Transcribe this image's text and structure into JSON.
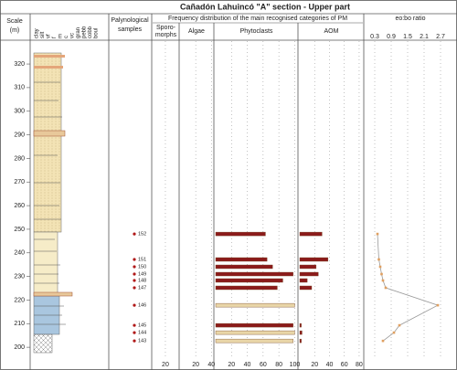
{
  "title": "Cañadón Lahuincó \"A\" section - Upper part",
  "depth_axis": {
    "label_lines": [
      "Scale",
      "(m)"
    ],
    "ylim": [
      195.4,
      329.7
    ],
    "yticks": [
      200,
      210,
      220,
      230,
      240,
      250,
      260,
      270,
      280,
      290,
      300,
      310,
      320
    ]
  },
  "lithology": {
    "grain_sizes": [
      "clay",
      "silt",
      "vf",
      "f",
      "m",
      "c",
      "vc",
      "gran",
      "pebb",
      "cobb",
      "boul"
    ]
  },
  "samples": {
    "title_lines": [
      "Palynological",
      "samples"
    ],
    "labels": [
      "152",
      "151",
      "150",
      "149",
      "148",
      "147",
      "146",
      "145",
      "144",
      "143"
    ],
    "depths": [
      248,
      237.2,
      234.1,
      231,
      228.3,
      225.2,
      217.8,
      209.3,
      206.2,
      202.7
    ]
  },
  "frequency_title": "Frequency distribution of the main recognised categories of PM",
  "chart_data": [
    {
      "type": "bar",
      "title_lines": [
        "Sporo-",
        "morphs"
      ],
      "xlim": [
        0,
        42
      ],
      "xticks": [
        20
      ]
    },
    {
      "type": "bar",
      "title_lines": [
        "Algae"
      ],
      "xlim": [
        0,
        42
      ],
      "xticks": [
        20,
        40
      ]
    },
    {
      "type": "bar",
      "title_lines": [
        "Phytoclasts"
      ],
      "xlim": [
        0,
        103
      ],
      "xticks": [
        20,
        40,
        60,
        80,
        100
      ],
      "values": [
        63,
        65,
        72,
        98,
        85,
        78,
        100,
        98,
        100,
        98
      ],
      "colors": [
        "#8b1a1a",
        "#8b1a1a",
        "#8b1a1a",
        "#8b1a1a",
        "#8b1a1a",
        "#8b1a1a",
        "#e9d6a8",
        "#8b1a1a",
        "#e9d6a8",
        "#e9d6a8"
      ]
    },
    {
      "type": "bar",
      "title_lines": [
        "AOM"
      ],
      "xlim": [
        0,
        85
      ],
      "xticks": [
        20,
        40,
        60,
        80
      ],
      "values": [
        30,
        38,
        22,
        25,
        10,
        16,
        0,
        2,
        3,
        2
      ],
      "color": "#8b1a1a"
    },
    {
      "type": "line",
      "title_lines": [
        "eo:bo ratio"
      ],
      "xlim": [
        0,
        3.2
      ],
      "xticks": [
        0.3,
        0.9,
        1.5,
        2.1,
        2.7
      ],
      "values": [
        0.4,
        0.45,
        0.5,
        0.55,
        0.6,
        0.7,
        2.6,
        1.2,
        1.0,
        0.6
      ],
      "color": "#999999",
      "marker_color": "#e0a060"
    }
  ]
}
